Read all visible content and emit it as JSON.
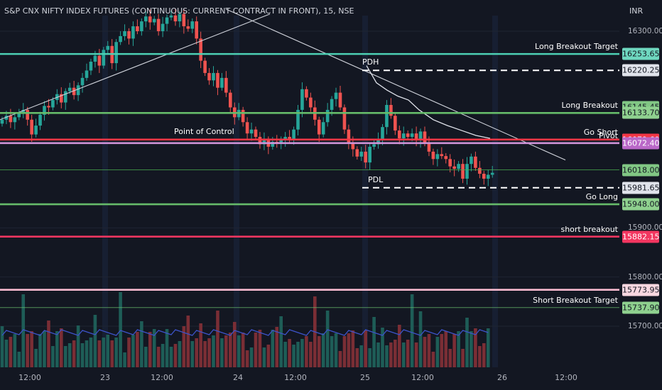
{
  "header": {
    "title": "S&P CNX NIFTY INDEX FUTURES (CONTINUOUS: CURRENT CONTRACT IN FRONT), 15, NSE",
    "currency": "INR"
  },
  "axis": {
    "y_ticks": [
      "16300.00",
      "15900.00",
      "15800.00",
      "15700.00"
    ],
    "x_ticks": [
      "12:00",
      "23",
      "12:00",
      "24",
      "12:00",
      "25",
      "12:00",
      "26",
      "12:00"
    ]
  },
  "levels": [
    {
      "label": "Long Breakout Target",
      "value": 16253.65,
      "value_text": "16253.65",
      "color": "#4dd0b4",
      "badge_color": "#6fd8c0",
      "style": "solid",
      "badge_dark": true
    },
    {
      "label": "",
      "value": 16220.25,
      "value_text": "16220.25",
      "color": "#ffffff",
      "badge_color": "#e0e3eb",
      "style": "dashed",
      "badge_dark": true
    },
    {
      "label": "",
      "value": 16145.45,
      "value_text": "16145.45",
      "color": "#4caf50",
      "badge_color": "#81c784",
      "style": "none",
      "badge_dark": true
    },
    {
      "label": "Long Breakout",
      "value": 16133.7,
      "value_text": "16133.70",
      "color": "#66bb6a",
      "badge_color": "#8fd18f",
      "style": "solid",
      "badge_dark": true
    },
    {
      "label": "",
      "value": 16080.0,
      "value_text": "16080.00",
      "color": "#ffffff",
      "badge_color": "#e0e3eb",
      "style": "dashed",
      "badge_dark": true
    },
    {
      "label": "Go Short",
      "value": 16079.6,
      "value_text": "16079.60",
      "color": "#f23645",
      "badge_color": "#f23645",
      "style": "solid",
      "badge_dark": false
    },
    {
      "label": "Pivot",
      "value": 16072.4,
      "value_text": "16072.40",
      "color": "#ce93d8",
      "badge_color": "#ba68c8",
      "style": "solid",
      "badge_dark": false
    },
    {
      "label": "",
      "value": 16018.0,
      "value_text": "16018.00",
      "color": "#4caf50",
      "badge_color": "#81c784",
      "style": "thin",
      "badge_dark": true
    },
    {
      "label": "",
      "value": 15981.65,
      "value_text": "15981.65",
      "color": "#ffffff",
      "badge_color": "#e0e3eb",
      "style": "dashed",
      "badge_dark": true
    },
    {
      "label": "Go Long",
      "value": 15948.0,
      "value_text": "15948.00",
      "color": "#66bb6a",
      "badge_color": "#8fd18f",
      "style": "solid",
      "badge_dark": true
    },
    {
      "label": "short breakout",
      "value": 15882.15,
      "value_text": "15882.15",
      "color": "#f23660",
      "badge_color": "#f23660",
      "style": "solid",
      "badge_dark": false
    },
    {
      "label": "",
      "value": 15773.95,
      "value_text": "15773.95",
      "color": "#f8bbd0",
      "badge_color": "#f8d7e0",
      "style": "solid",
      "badge_dark": true
    },
    {
      "label": "Short  Breakout Target",
      "value": 15737.9,
      "value_text": "15737.90",
      "color": "#66bb6a",
      "badge_color": "#8fd18f",
      "style": "thin",
      "badge_dark": true
    }
  ],
  "annotations": [
    {
      "text": "PDH",
      "value": 16220.25
    },
    {
      "text": "Point of Control",
      "value": 16080.0
    },
    {
      "text": "PDL",
      "value": 15981.65
    }
  ],
  "chart_data": {
    "type": "candlestick",
    "timeframe": "15",
    "exchange": "NSE",
    "ylim": [
      15665,
      16335
    ],
    "x_labels": [
      "12:00",
      "23",
      "12:00",
      "24",
      "12:00",
      "25",
      "12:00",
      "26",
      "12:00"
    ],
    "closes": [
      16120,
      16128,
      16115,
      16125,
      16132,
      16140,
      16120,
      16090,
      16108,
      16130,
      16148,
      16145,
      16160,
      16172,
      16155,
      16178,
      16185,
      16170,
      16190,
      16205,
      16220,
      16238,
      16250,
      16230,
      16262,
      16270,
      16235,
      16278,
      16290,
      16300,
      16285,
      16310,
      16300,
      16320,
      16330,
      16318,
      16325,
      16300,
      16315,
      16328,
      16332,
      16320,
      16335,
      16310,
      16305,
      16320,
      16285,
      16240,
      16215,
      16200,
      16215,
      16185,
      16205,
      16175,
      16145,
      16125,
      16140,
      16115,
      16092,
      16100,
      16085,
      16070,
      16080,
      16065,
      16075,
      16072,
      16080,
      16085,
      16078,
      16100,
      16140,
      16182,
      16165,
      16145,
      16120,
      16090,
      16115,
      16140,
      16162,
      16175,
      16145,
      16100,
      16072,
      16060,
      16045,
      16055,
      16033,
      16065,
      16070,
      16080,
      16105,
      16150,
      16128,
      16098,
      16082,
      16092,
      16085,
      16092,
      16078,
      16096,
      16072,
      16055,
      16040,
      16050,
      16046,
      16040,
      16025,
      16020,
      16030,
      16000,
      16030,
      16045,
      16022,
      16010,
      16000,
      16008,
      16012
    ],
    "volume_bars": 116
  }
}
